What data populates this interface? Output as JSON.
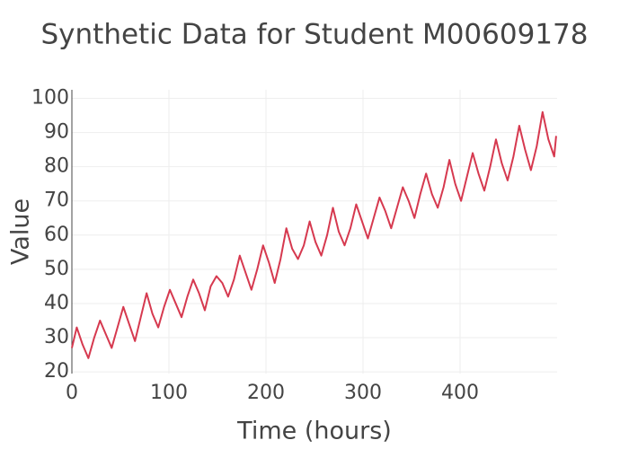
{
  "chart_data": {
    "type": "line",
    "title": "Synthetic Data for Student M00609178",
    "x_label": "Time (hours)",
    "y_label": "Value",
    "x": [
      0,
      5,
      11,
      17,
      23,
      29,
      35,
      41,
      47,
      53,
      59,
      65,
      71,
      77,
      83,
      89,
      95,
      101,
      107,
      113,
      119,
      125,
      131,
      137,
      143,
      149,
      155,
      161,
      167,
      173,
      179,
      185,
      191,
      197,
      203,
      209,
      215,
      221,
      227,
      233,
      239,
      245,
      251,
      257,
      263,
      269,
      275,
      281,
      287,
      293,
      299,
      305,
      311,
      317,
      323,
      329,
      335,
      341,
      347,
      353,
      359,
      365,
      371,
      377,
      383,
      389,
      395,
      401,
      407,
      413,
      419,
      425,
      431,
      437,
      443,
      449,
      455,
      461,
      467,
      473,
      479,
      485,
      491,
      497,
      499
    ],
    "series": [
      {
        "name": "Value",
        "color": "#d6394f",
        "values": [
          27,
          33,
          28,
          24,
          30,
          35,
          31,
          27,
          33,
          39,
          34,
          29,
          36,
          43,
          37,
          33,
          39,
          44,
          40,
          36,
          42,
          47,
          43,
          38,
          45,
          48,
          46,
          42,
          47,
          54,
          49,
          44,
          50,
          57,
          52,
          46,
          53,
          62,
          56,
          53,
          57,
          64,
          58,
          54,
          60,
          68,
          61,
          57,
          62,
          69,
          64,
          59,
          65,
          71,
          67,
          62,
          68,
          74,
          70,
          65,
          72,
          78,
          72,
          68,
          74,
          82,
          75,
          70,
          77,
          84,
          78,
          73,
          80,
          88,
          81,
          76,
          83,
          92,
          85,
          79,
          86,
          96,
          88,
          83,
          89
        ]
      }
    ],
    "xlim": [
      0,
      500
    ],
    "ylim": [
      19.5,
      102.5
    ],
    "xticks": [
      0,
      100,
      200,
      300,
      400
    ],
    "yticks": [
      20,
      30,
      40,
      50,
      60,
      70,
      80,
      90,
      100
    ],
    "grid": true
  }
}
